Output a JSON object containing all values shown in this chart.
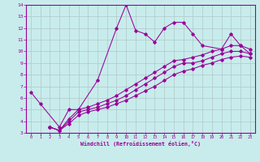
{
  "bg_color": "#c8ecec",
  "line_color": "#990099",
  "grid_color": "#b0c8c8",
  "xlim": [
    -0.5,
    23.5
  ],
  "ylim": [
    3,
    14
  ],
  "xticks": [
    0,
    1,
    2,
    3,
    4,
    5,
    6,
    7,
    8,
    9,
    10,
    11,
    12,
    13,
    14,
    15,
    16,
    17,
    18,
    19,
    20,
    21,
    22,
    23
  ],
  "yticks": [
    3,
    4,
    5,
    6,
    7,
    8,
    9,
    10,
    11,
    12,
    13,
    14
  ],
  "xlabel": "Windchill (Refroidissement éolien,°C)",
  "line1_x": [
    0,
    1,
    3,
    4,
    5,
    7,
    9,
    10,
    11,
    12,
    13,
    14,
    15,
    16,
    17,
    18,
    20,
    21,
    22,
    23
  ],
  "line1_y": [
    6.5,
    5.5,
    3.5,
    5.0,
    5.0,
    7.5,
    12.0,
    14.0,
    11.8,
    11.5,
    10.8,
    12.0,
    12.5,
    12.5,
    11.5,
    10.5,
    10.2,
    11.5,
    10.5,
    9.8
  ],
  "line2_x": [
    2,
    3,
    4,
    5,
    6,
    7,
    8,
    9,
    10,
    11,
    12,
    13,
    14,
    15,
    16,
    17,
    18,
    19,
    20,
    21,
    22,
    23
  ],
  "line2_y": [
    3.5,
    3.2,
    4.2,
    5.0,
    5.2,
    5.5,
    5.8,
    6.2,
    6.7,
    7.2,
    7.7,
    8.2,
    8.7,
    9.2,
    9.3,
    9.5,
    9.7,
    10.0,
    10.2,
    10.5,
    10.5,
    10.2
  ],
  "line3_x": [
    2,
    3,
    4,
    5,
    6,
    7,
    8,
    9,
    10,
    11,
    12,
    13,
    14,
    15,
    16,
    17,
    18,
    19,
    20,
    21,
    22,
    23
  ],
  "line3_y": [
    3.5,
    3.2,
    4.0,
    4.8,
    5.0,
    5.2,
    5.5,
    5.8,
    6.2,
    6.7,
    7.2,
    7.7,
    8.2,
    8.7,
    9.0,
    9.0,
    9.2,
    9.5,
    9.8,
    10.0,
    10.0,
    9.8
  ],
  "line4_x": [
    2,
    3,
    4,
    5,
    6,
    7,
    8,
    9,
    10,
    11,
    12,
    13,
    14,
    15,
    16,
    17,
    18,
    19,
    20,
    21,
    22,
    23
  ],
  "line4_y": [
    3.5,
    3.2,
    3.8,
    4.5,
    4.8,
    5.0,
    5.2,
    5.5,
    5.8,
    6.2,
    6.6,
    7.0,
    7.5,
    8.0,
    8.3,
    8.5,
    8.8,
    9.0,
    9.3,
    9.5,
    9.6,
    9.5
  ]
}
